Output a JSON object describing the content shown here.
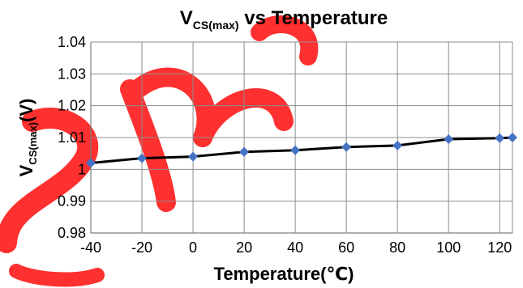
{
  "chart_data": {
    "type": "line",
    "title": {
      "main": "V",
      "sub": "CS(max)",
      "rest": " vs Temperature"
    },
    "xlabel": "Temperature(℃)",
    "ylabel": {
      "main": "V",
      "sub": "CS(max)",
      "rest": "(V)"
    },
    "xlim": [
      -40,
      125
    ],
    "ylim": [
      0.98,
      1.04
    ],
    "xticks": [
      -40,
      -20,
      0,
      20,
      40,
      60,
      80,
      100,
      120
    ],
    "xtick_labels": [
      "-40",
      "-20",
      "0",
      "20",
      "40",
      "60",
      "80",
      "100",
      "120"
    ],
    "yticks": [
      0.98,
      0.99,
      1.0,
      1.01,
      1.02,
      1.03,
      1.04
    ],
    "ytick_labels": [
      "0.98",
      "0.99",
      "1",
      "1.01",
      "1.02",
      "1.03",
      "1.04"
    ],
    "grid": true,
    "series": [
      {
        "x": [
          -40,
          -20,
          0,
          20,
          40,
          60,
          80,
          100,
          120,
          125
        ],
        "y": [
          1.002,
          1.0035,
          1.004,
          1.0055,
          1.006,
          1.007,
          1.0075,
          1.0095,
          1.0098,
          1.01
        ],
        "line_color": "#000000",
        "marker_color": "#4472C4",
        "marker": "diamond"
      }
    ],
    "watermark_color": "#ff1a1a"
  }
}
